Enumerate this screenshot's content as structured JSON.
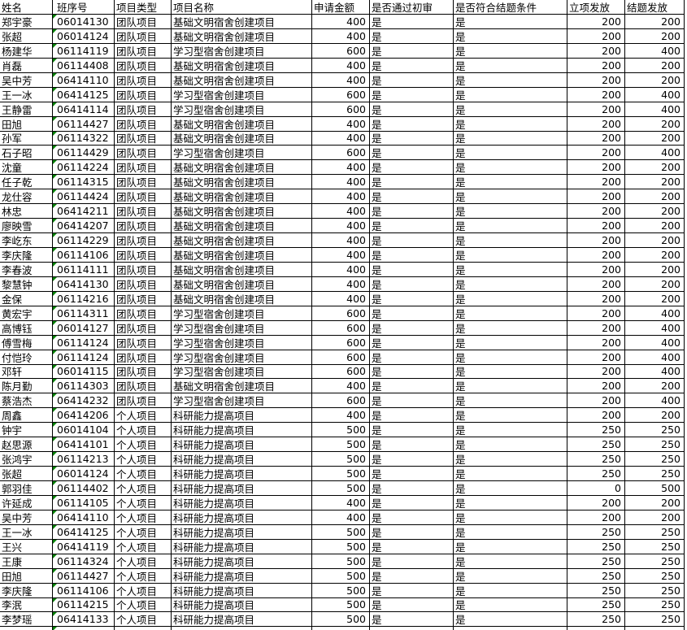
{
  "app": "spreadsheet-grid",
  "colors": {
    "grid_line": "#000000",
    "error_triangle": "#008000",
    "background": "#ffffff",
    "text": "#000000"
  },
  "icons": {
    "number_stored_as_text_triangle": "corner-triangle"
  },
  "table": {
    "columns": [
      "姓名",
      "班序号",
      "项目类型",
      "项目名称",
      "申请金额",
      "是否通过初审",
      "是否符合结题条件",
      "立项发放",
      "结题发放"
    ],
    "rows": [
      [
        "郑宇豪",
        "06014130",
        "团队项目",
        "基础文明宿舍创建项目",
        400,
        "是",
        "是",
        200,
        200
      ],
      [
        "张超",
        "06014124",
        "团队项目",
        "基础文明宿舍创建项目",
        400,
        "是",
        "是",
        200,
        200
      ],
      [
        "杨建华",
        "06114119",
        "团队项目",
        "学习型宿舍创建项目",
        600,
        "是",
        "是",
        200,
        400
      ],
      [
        "肖磊",
        "06114408",
        "团队项目",
        "基础文明宿舍创建项目",
        400,
        "是",
        "是",
        200,
        200
      ],
      [
        "吴中芳",
        "06414110",
        "团队项目",
        "基础文明宿舍创建项目",
        400,
        "是",
        "是",
        200,
        200
      ],
      [
        "王一冰",
        "06414125",
        "团队项目",
        "学习型宿舍创建项目",
        600,
        "是",
        "是",
        200,
        400
      ],
      [
        "王静雷",
        "06414114",
        "团队项目",
        "学习型宿舍创建项目",
        600,
        "是",
        "是",
        200,
        400
      ],
      [
        "田旭",
        "06114427",
        "团队项目",
        "基础文明宿舍创建项目",
        400,
        "是",
        "是",
        200,
        200
      ],
      [
        "孙军",
        "06114322",
        "团队项目",
        "基础文明宿舍创建项目",
        400,
        "是",
        "是",
        200,
        200
      ],
      [
        "石子昭",
        "06114429",
        "团队项目",
        "学习型宿舍创建项目",
        600,
        "是",
        "是",
        200,
        400
      ],
      [
        "沈童",
        "06114224",
        "团队项目",
        "基础文明宿舍创建项目",
        400,
        "是",
        "是",
        200,
        200
      ],
      [
        "任子乾",
        "06114315",
        "团队项目",
        "基础文明宿舍创建项目",
        400,
        "是",
        "是",
        200,
        200
      ],
      [
        "龙仕容",
        "06114424",
        "团队项目",
        "基础文明宿舍创建项目",
        400,
        "是",
        "是",
        200,
        200
      ],
      [
        "林忠",
        "06414211",
        "团队项目",
        "基础文明宿舍创建项目",
        400,
        "是",
        "是",
        200,
        200
      ],
      [
        "廖映雪",
        "06414207",
        "团队项目",
        "基础文明宿舍创建项目",
        400,
        "是",
        "是",
        200,
        200
      ],
      [
        "李屹东",
        "06114229",
        "团队项目",
        "基础文明宿舍创建项目",
        400,
        "是",
        "是",
        200,
        200
      ],
      [
        "李庆隆",
        "06114106",
        "团队项目",
        "基础文明宿舍创建项目",
        400,
        "是",
        "是",
        200,
        200
      ],
      [
        "李春波",
        "06114111",
        "团队项目",
        "基础文明宿舍创建项目",
        400,
        "是",
        "是",
        200,
        200
      ],
      [
        "黎慧钟",
        "06414130",
        "团队项目",
        "基础文明宿舍创建项目",
        400,
        "是",
        "是",
        200,
        200
      ],
      [
        "金保",
        "06114216",
        "团队项目",
        "基础文明宿舍创建项目",
        400,
        "是",
        "是",
        200,
        200
      ],
      [
        "黄宏宇",
        "06114311",
        "团队项目",
        "学习型宿舍创建项目",
        600,
        "是",
        "是",
        200,
        400
      ],
      [
        "高博钰",
        "06014127",
        "团队项目",
        "学习型宿舍创建项目",
        600,
        "是",
        "是",
        200,
        400
      ],
      [
        "傅雪梅",
        "06114124",
        "团队项目",
        "学习型宿舍创建项目",
        600,
        "是",
        "是",
        200,
        400
      ],
      [
        "付恺玲",
        "06114124",
        "团队项目",
        "学习型宿舍创建项目",
        600,
        "是",
        "是",
        200,
        400
      ],
      [
        "邓轩",
        "06014115",
        "团队项目",
        "学习型宿舍创建项目",
        600,
        "是",
        "是",
        200,
        400
      ],
      [
        "陈月勤",
        "06114303",
        "团队项目",
        "基础文明宿舍创建项目",
        400,
        "是",
        "是",
        200,
        200
      ],
      [
        "蔡浩杰",
        "06414232",
        "团队项目",
        "学习型宿舍创建项目",
        600,
        "是",
        "是",
        200,
        400
      ],
      [
        "周鑫",
        "06414206",
        "个人项目",
        "科研能力提高项目",
        400,
        "是",
        "是",
        200,
        200
      ],
      [
        "钟宇",
        "06014104",
        "个人项目",
        "科研能力提高项目",
        500,
        "是",
        "是",
        250,
        250
      ],
      [
        "赵思源",
        "06414101",
        "个人项目",
        "科研能力提高项目",
        500,
        "是",
        "是",
        250,
        250
      ],
      [
        "张鸿宇",
        "06114213",
        "个人项目",
        "科研能力提高项目",
        500,
        "是",
        "是",
        250,
        250
      ],
      [
        "张超",
        "06014124",
        "个人项目",
        "科研能力提高项目",
        500,
        "是",
        "是",
        250,
        250
      ],
      [
        "郭羽佳",
        "06114402",
        "个人项目",
        "科研能力提高项目",
        500,
        "是",
        "是",
        0,
        500
      ],
      [
        "许延成",
        "06114105",
        "个人项目",
        "科研能力提高项目",
        400,
        "是",
        "是",
        200,
        200
      ],
      [
        "吴中芳",
        "06414110",
        "个人项目",
        "科研能力提高项目",
        400,
        "是",
        "是",
        200,
        200
      ],
      [
        "王一冰",
        "06414125",
        "个人项目",
        "科研能力提高项目",
        500,
        "是",
        "是",
        250,
        250
      ],
      [
        "王兴",
        "06414119",
        "个人项目",
        "科研能力提高项目",
        500,
        "是",
        "是",
        250,
        250
      ],
      [
        "王康",
        "06114324",
        "个人项目",
        "科研能力提高项目",
        500,
        "是",
        "是",
        250,
        250
      ],
      [
        "田旭",
        "06114427",
        "个人项目",
        "科研能力提高项目",
        500,
        "是",
        "是",
        250,
        250
      ],
      [
        "李庆隆",
        "06114106",
        "个人项目",
        "科研能力提高项目",
        500,
        "是",
        "是",
        250,
        250
      ],
      [
        "李泯",
        "06114215",
        "个人项目",
        "科研能力提高项目",
        500,
        "是",
        "是",
        250,
        250
      ],
      [
        "李梦瑶",
        "06414133",
        "个人项目",
        "科研能力提高项目",
        500,
        "是",
        "是",
        250,
        250
      ]
    ],
    "partial_next_row_visible": true
  }
}
